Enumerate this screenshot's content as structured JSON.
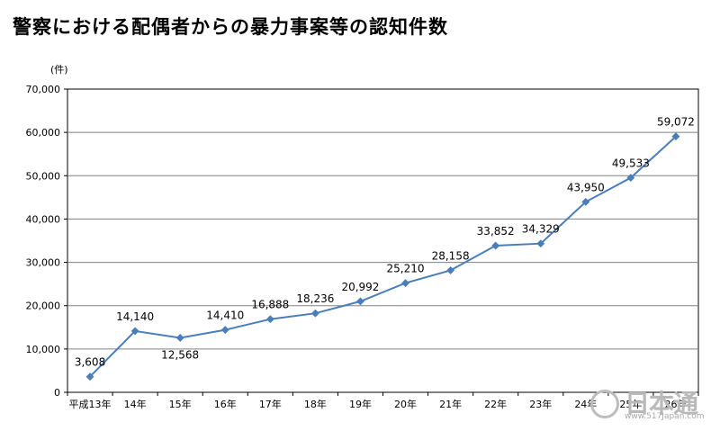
{
  "chart_data": {
    "type": "line",
    "title": "警察における配偶者からの暴力事案等の認知件数",
    "unit_label": "(件)",
    "categories": [
      "平成13年",
      "14年",
      "15年",
      "16年",
      "17年",
      "18年",
      "19年",
      "20年",
      "21年",
      "22年",
      "23年",
      "24年",
      "25年",
      "26年"
    ],
    "series": [
      {
        "values": [
          3608,
          14140,
          12568,
          14410,
          16888,
          18236,
          20992,
          25210,
          28158,
          33852,
          34329,
          43950,
          49533,
          59072
        ],
        "value_labels": [
          "3,608",
          "14,140",
          "12,568",
          "14,410",
          "16,888",
          "18,236",
          "20,992",
          "25,210",
          "28,158",
          "33,852",
          "34,329",
          "43,950",
          "49,533",
          "59,072"
        ]
      }
    ],
    "yticks": [
      "0",
      "10,000",
      "20,000",
      "30,000",
      "40,000",
      "50,000",
      "60,000",
      "70,000"
    ],
    "ylim": [
      0,
      70000
    ],
    "grid": true,
    "line_color": "#4a7ebb"
  },
  "watermark": {
    "text": "日本通",
    "subtext": "www.517Japan.com"
  }
}
